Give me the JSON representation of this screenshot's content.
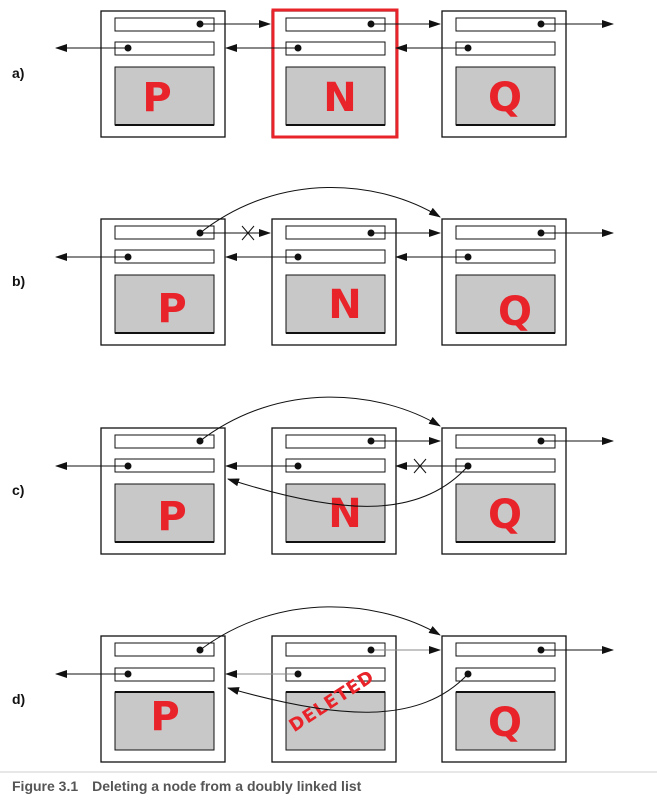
{
  "figure": {
    "caption_number": "Figure 3.1",
    "caption_text": "Deleting a node from a doubly linked list"
  },
  "colors": {
    "accent": "#e8232a",
    "node_fill": "#c8c8c8",
    "line": "#111111"
  },
  "rows": [
    {
      "label": "a)",
      "nodes": [
        "P",
        "N",
        "Q"
      ],
      "highlight": "N",
      "deleted": null
    },
    {
      "label": "b)",
      "nodes": [
        "P",
        "N",
        "Q"
      ],
      "highlight": null,
      "deleted": null
    },
    {
      "label": "c)",
      "nodes": [
        "P",
        "N",
        "Q"
      ],
      "highlight": null,
      "deleted": null
    },
    {
      "label": "d)",
      "nodes": [
        "P",
        "",
        "Q"
      ],
      "highlight": null,
      "deleted": "DELETED"
    }
  ]
}
